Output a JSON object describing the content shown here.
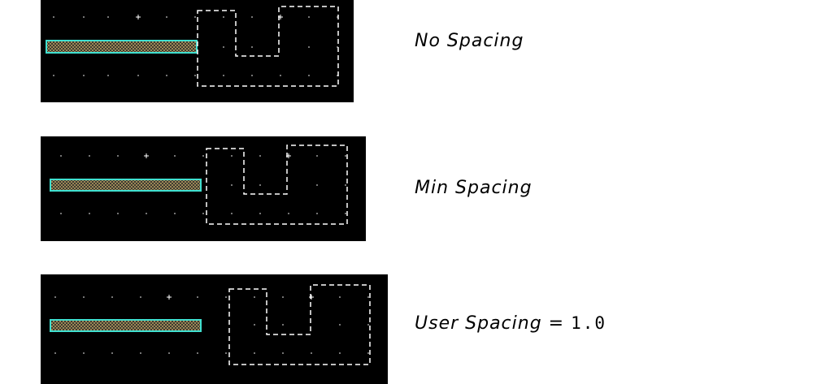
{
  "figure": {
    "colors": {
      "background": "#000000",
      "wire_fill": "#b8a060",
      "wire_outline": "#40e0d0",
      "dashed_outline": "#ffffff",
      "grid_dot": "#9a9a9a",
      "marker": "#ffffff"
    },
    "panels": [
      {
        "caption": "No Spacing",
        "caption_value": ""
      },
      {
        "caption": "Min Spacing",
        "caption_value": ""
      },
      {
        "caption": "User Spacing = ",
        "caption_value": "1.0"
      }
    ]
  }
}
